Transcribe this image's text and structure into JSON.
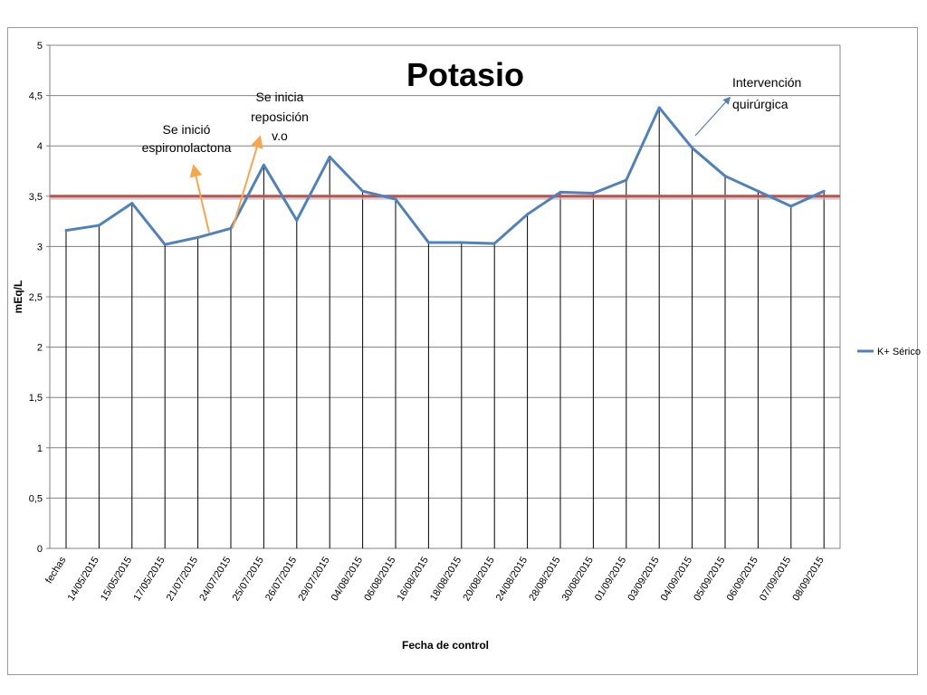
{
  "chart_data": {
    "type": "line",
    "title": "Potasio",
    "xlabel": "Fecha de control",
    "ylabel": "mEq/L",
    "ylim": [
      0,
      5
    ],
    "yticks": [
      "0",
      "0,5",
      "1",
      "1,5",
      "2",
      "2,5",
      "3",
      "3,5",
      "4",
      "4,5",
      "5"
    ],
    "grid": "horizontal gridlines and vertical drop lines",
    "legend_position": "right",
    "categories": [
      "fechas",
      "14/05/2015",
      "15/05/2015",
      "17/05/2015",
      "21/07/2015",
      "24/07/2015",
      "25/07/2015",
      "26/07/2015",
      "29/07/2015",
      "04/08/2015",
      "06/08/2015",
      "16/08/2015",
      "18/08/2015",
      "20/08/2015",
      "24/08/2015",
      "28/08/2015",
      "30/08/2015",
      "01/09/2015",
      "03/09/2015",
      "04/09/2015",
      "05/09/2015",
      "06/09/2015",
      "07/09/2015",
      "08/09/2015"
    ],
    "series": [
      {
        "name": "K+ Sérico",
        "color": "#4f81bd",
        "values": [
          3.16,
          3.21,
          3.43,
          3.02,
          3.09,
          3.18,
          3.81,
          3.26,
          3.89,
          3.55,
          3.47,
          3.04,
          3.04,
          3.03,
          3.32,
          3.54,
          3.53,
          3.66,
          4.38,
          3.98,
          3.7,
          3.55,
          3.4,
          3.55
        ]
      }
    ],
    "reference_line": {
      "value": 3.5,
      "color": "#c0504d"
    },
    "annotations": [
      {
        "lines": [
          "Se inició",
          "espironolactona"
        ],
        "color": "#f7a64b"
      },
      {
        "lines": [
          "Se inicia",
          "reposición",
          "v.o"
        ],
        "color": "#f7a64b"
      },
      {
        "lines": [
          "Intervención",
          "quirúrgica"
        ],
        "color": "#4f81bd"
      }
    ]
  }
}
